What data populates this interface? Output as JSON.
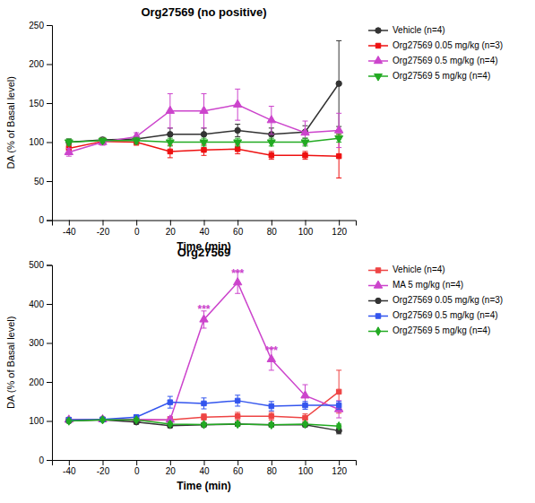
{
  "chart_data": [
    {
      "type": "line",
      "title": "Org27569 (no positive)",
      "xlabel": "Time (min)",
      "ylabel": "DA (% of Basal level)",
      "x": [
        -40,
        -20,
        0,
        20,
        40,
        60,
        80,
        100,
        120
      ],
      "xlim": [
        -50,
        130
      ],
      "xticks": [
        -40,
        -20,
        0,
        20,
        40,
        60,
        80,
        100,
        120
      ],
      "ylim": [
        0,
        250
      ],
      "yticks": [
        0,
        50,
        100,
        150,
        200,
        250
      ],
      "grid": false,
      "legend": "right",
      "series": [
        {
          "name": "Vehicle (n=4)",
          "color": "#333333",
          "marker": "circle",
          "values": [
            100,
            103,
            104,
            110,
            110,
            115,
            110,
            113,
            175
          ],
          "errors": [
            4,
            3,
            4,
            8,
            8,
            8,
            8,
            8,
            55
          ]
        },
        {
          "name": "Org27569 0.05 mg/kg (n=3)",
          "color": "#ee1111",
          "marker": "square",
          "values": [
            92,
            101,
            100,
            88,
            90,
            91,
            83,
            83,
            82
          ],
          "errors": [
            5,
            4,
            4,
            8,
            7,
            6,
            5,
            5,
            28
          ]
        },
        {
          "name": "Org27569 0.5 mg/kg (n=4)",
          "color": "#cc44cc",
          "marker": "triangle-up",
          "values": [
            87,
            100,
            107,
            140,
            140,
            148,
            128,
            112,
            115
          ],
          "errors": [
            5,
            4,
            5,
            22,
            22,
            20,
            18,
            15,
            22
          ]
        },
        {
          "name": "Org27569 5 mg/kg (n=4)",
          "color": "#22aa22",
          "marker": "triangle-down",
          "values": [
            100,
            102,
            102,
            100,
            100,
            100,
            100,
            100,
            105
          ],
          "errors": [
            4,
            3,
            4,
            5,
            5,
            5,
            5,
            5,
            5
          ]
        }
      ]
    },
    {
      "type": "line",
      "title": "Org27569",
      "xlabel": "Time (min)",
      "ylabel": "DA (% of Basal level)",
      "x": [
        -40,
        -20,
        0,
        20,
        40,
        60,
        80,
        100,
        120
      ],
      "xlim": [
        -50,
        130
      ],
      "xticks": [
        -40,
        -20,
        0,
        20,
        40,
        60,
        80,
        100,
        120
      ],
      "ylim": [
        0,
        500
      ],
      "yticks": [
        0,
        100,
        200,
        300,
        400,
        500
      ],
      "grid": false,
      "legend": "right",
      "annotations": [
        {
          "x": 40,
          "y": 378,
          "text": "***",
          "color": "#cc44cc"
        },
        {
          "x": 60,
          "y": 468,
          "text": "***",
          "color": "#cc44cc"
        },
        {
          "x": 80,
          "y": 272,
          "text": "***",
          "color": "#cc44cc"
        }
      ],
      "series": [
        {
          "name": "Vehicle (n=4)",
          "color": "#ee4444",
          "marker": "square",
          "values": [
            103,
            104,
            102,
            103,
            110,
            112,
            112,
            108,
            175
          ],
          "errors": [
            5,
            4,
            5,
            8,
            8,
            10,
            10,
            10,
            55
          ]
        },
        {
          "name": "MA 5 mg/kg (n=4)",
          "color": "#cc44cc",
          "marker": "triangle-up",
          "values": [
            103,
            104,
            104,
            103,
            360,
            455,
            258,
            165,
            130
          ],
          "errors": [
            5,
            4,
            5,
            8,
            22,
            28,
            28,
            28,
            22
          ]
        },
        {
          "name": "Org27569 0.05 mg/kg (n=3)",
          "color": "#333333",
          "marker": "circle",
          "values": [
            100,
            103,
            97,
            88,
            90,
            92,
            90,
            90,
            75
          ],
          "errors": [
            5,
            4,
            5,
            5,
            5,
            5,
            5,
            5,
            8
          ]
        },
        {
          "name": "Org27569 0.5 mg/kg (n=4)",
          "color": "#3355ee",
          "marker": "square",
          "values": [
            103,
            104,
            110,
            148,
            145,
            152,
            138,
            140,
            140
          ],
          "errors": [
            5,
            4,
            5,
            15,
            14,
            14,
            12,
            10,
            10
          ]
        },
        {
          "name": "Org27569 5 mg/kg (n=4)",
          "color": "#22aa22",
          "marker": "diamond",
          "values": [
            100,
            103,
            103,
            92,
            91,
            92,
            90,
            92,
            87
          ],
          "errors": [
            4,
            3,
            4,
            5,
            5,
            5,
            5,
            5,
            5
          ]
        }
      ]
    }
  ]
}
